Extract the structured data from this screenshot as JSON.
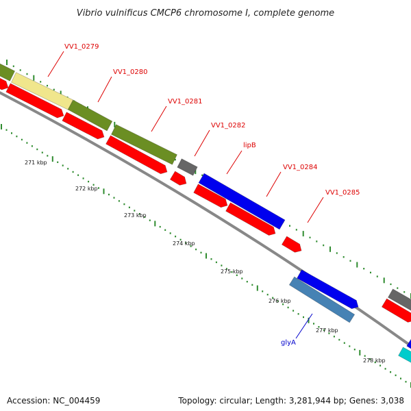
{
  "title": "Vibrio vulnificus CMCP6 chromosome I, complete genome",
  "accession": "Accession: NC_004459",
  "topology": "Topology: circular; Length: 3,281,944 bp; Genes: 3,038",
  "colors": {
    "backbone": "#888888",
    "red": "#ff0000",
    "olive": "#6b8e23",
    "khaki": "#f0e68c",
    "grey": "#666666",
    "blue": "#0000ee",
    "steelblue": "#4682b4",
    "cyan": "#00cccc",
    "tick_green": "#2e8b2e",
    "label_red": "#dd0000",
    "label_blue": "#0000cc"
  },
  "kbp_labels": [
    "271 kbp",
    "272 kbp",
    "273 kbp",
    "274 kbp",
    "275 kbp",
    "276 kbp",
    "277 kbp",
    "278 kbp"
  ],
  "gene_labels": [
    {
      "text": "VV1_0279",
      "color": "red"
    },
    {
      "text": "VV1_0280",
      "color": "red"
    },
    {
      "text": "VV1_0281",
      "color": "red"
    },
    {
      "text": "VV1_0282",
      "color": "red"
    },
    {
      "text": "lipB",
      "color": "red"
    },
    {
      "text": "VV1_0284",
      "color": "red"
    },
    {
      "text": "VV1_0285",
      "color": "red"
    },
    {
      "text": "glyA",
      "color": "blue"
    }
  ]
}
